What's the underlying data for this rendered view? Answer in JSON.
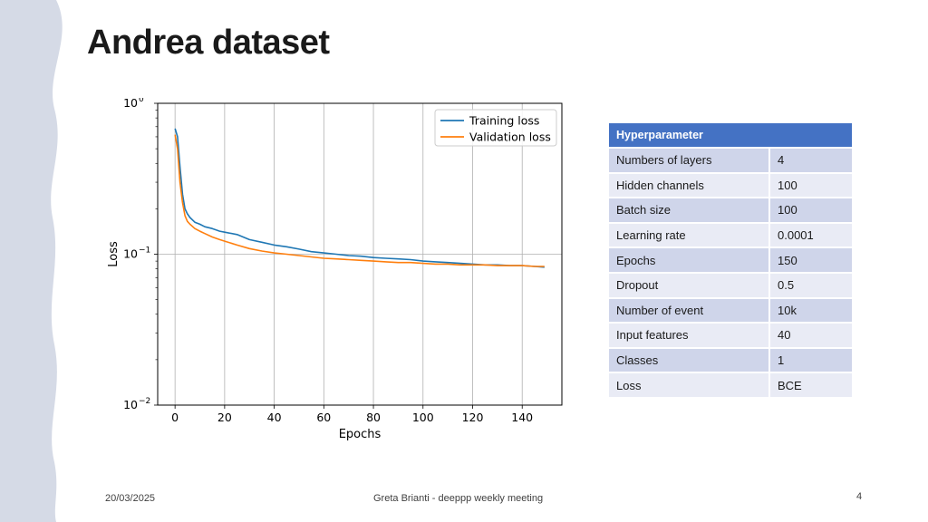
{
  "slide": {
    "title": "Andrea dataset",
    "footer_date": "20/03/2025",
    "footer_center": "Greta Brianti - deeppp weekly meeting",
    "page_number": "4"
  },
  "colors": {
    "band": "#d5dae6",
    "training": "#1f77b4",
    "validation": "#ff7f0e",
    "table_header": "#4472c4",
    "row_dark": "#cfd5ea",
    "row_light": "#e9ebf5"
  },
  "table": {
    "header": "Hyperparameter",
    "rows": [
      {
        "name": "Numbers of layers",
        "value": "4"
      },
      {
        "name": "Hidden channels",
        "value": "100"
      },
      {
        "name": "Batch size",
        "value": "100"
      },
      {
        "name": "Learning rate",
        "value": "0.0001"
      },
      {
        "name": "Epochs",
        "value": "150"
      },
      {
        "name": "Dropout",
        "value": "0.5"
      },
      {
        "name": "Number of event",
        "value": "10k"
      },
      {
        "name": "Input features",
        "value": "40"
      },
      {
        "name": "Classes",
        "value": "1"
      },
      {
        "name": "Loss",
        "value": "BCE"
      }
    ]
  },
  "chart_data": {
    "type": "line",
    "title": "",
    "xlabel": "Epochs",
    "ylabel": "Loss",
    "yscale": "log",
    "xlim": [
      -7,
      156
    ],
    "ylim": [
      0.01,
      1
    ],
    "xticks": [
      0,
      20,
      40,
      60,
      80,
      100,
      120,
      140
    ],
    "xtick_labels": [
      "0",
      "20",
      "40",
      "60",
      "80",
      "100",
      "120",
      "140"
    ],
    "yticks": [
      0.01,
      0.1,
      1
    ],
    "ytick_labels": [
      {
        "base": "10",
        "exp": "−2"
      },
      {
        "base": "10",
        "exp": "−1"
      },
      {
        "base": "10",
        "exp": "0"
      }
    ],
    "grid": true,
    "legend_position": "top-right",
    "series": [
      {
        "name": "Training loss",
        "x": [
          0,
          1,
          2,
          3,
          4,
          5,
          6,
          8,
          10,
          12,
          15,
          18,
          20,
          25,
          30,
          35,
          40,
          45,
          50,
          55,
          60,
          65,
          70,
          75,
          80,
          85,
          90,
          95,
          100,
          105,
          110,
          115,
          120,
          125,
          130,
          135,
          140,
          145,
          149
        ],
        "y": [
          0.68,
          0.6,
          0.38,
          0.25,
          0.2,
          0.185,
          0.175,
          0.163,
          0.158,
          0.152,
          0.148,
          0.142,
          0.14,
          0.135,
          0.125,
          0.12,
          0.115,
          0.112,
          0.108,
          0.104,
          0.102,
          0.1,
          0.098,
          0.097,
          0.095,
          0.094,
          0.093,
          0.092,
          0.09,
          0.089,
          0.088,
          0.087,
          0.086,
          0.085,
          0.085,
          0.084,
          0.084,
          0.083,
          0.082
        ]
      },
      {
        "name": "Validation loss",
        "x": [
          0,
          1,
          2,
          3,
          4,
          5,
          6,
          8,
          10,
          12,
          15,
          18,
          20,
          25,
          30,
          35,
          40,
          45,
          50,
          55,
          60,
          65,
          70,
          75,
          80,
          85,
          90,
          95,
          100,
          105,
          110,
          115,
          120,
          125,
          130,
          135,
          140,
          145,
          149
        ],
        "y": [
          0.62,
          0.5,
          0.3,
          0.22,
          0.18,
          0.165,
          0.158,
          0.148,
          0.142,
          0.137,
          0.13,
          0.125,
          0.122,
          0.115,
          0.109,
          0.105,
          0.102,
          0.1,
          0.098,
          0.096,
          0.094,
          0.093,
          0.092,
          0.091,
          0.09,
          0.089,
          0.088,
          0.088,
          0.087,
          0.086,
          0.086,
          0.085,
          0.085,
          0.085,
          0.084,
          0.084,
          0.084,
          0.083,
          0.083
        ]
      }
    ]
  }
}
